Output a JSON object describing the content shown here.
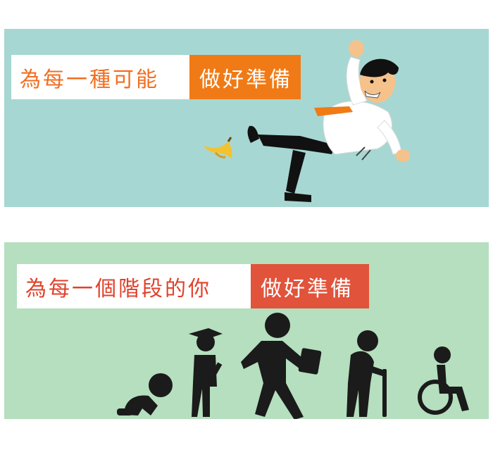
{
  "banner1": {
    "white_text": "為每一種可能",
    "colored_text": "做好準備",
    "accent": "#f07a16",
    "bg": "#a7d7d2"
  },
  "banner2": {
    "white_text": "為每一個階段的你",
    "colored_text": "做好準備",
    "accent": "#e1533a",
    "bg": "#b5dfbe"
  },
  "icons": [
    "falling-businessman-illustration",
    "banana-peel-icon",
    "crawling-baby-icon",
    "graduate-icon",
    "walking-businessman-icon",
    "elderly-cane-icon",
    "wheelchair-icon"
  ]
}
